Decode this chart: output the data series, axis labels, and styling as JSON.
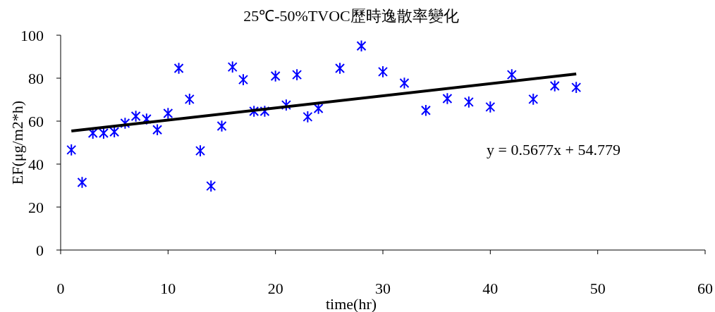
{
  "chart_data": {
    "type": "scatter",
    "title": "25℃-50%TVOC歷時逸散率變化",
    "xlabel": "time(hr)",
    "ylabel": "EF(μg/m2*h)",
    "xlim": [
      0,
      60
    ],
    "xticks": [
      0,
      10,
      20,
      30,
      40,
      50,
      60
    ],
    "ylim": [
      0,
      100
    ],
    "yticks": [
      0,
      20,
      40,
      60,
      80,
      100
    ],
    "grid": false,
    "marker": "cross",
    "annotations": [
      "y = 0.5677x + 54.779"
    ],
    "series": [
      {
        "color": "#0000ff",
        "x": [
          1,
          2,
          3,
          4,
          5,
          6,
          7,
          8,
          9,
          10,
          11,
          12,
          13,
          14,
          15,
          16,
          17,
          18,
          19,
          20,
          21,
          22,
          23,
          24,
          26,
          28,
          30,
          32,
          34,
          36,
          38,
          40,
          42,
          44,
          46,
          48
        ],
        "values": [
          46.6,
          31.5,
          54.4,
          54.4,
          55,
          59,
          62.3,
          61,
          56,
          63.6,
          84.6,
          70.2,
          46.2,
          29.8,
          57.7,
          85.2,
          79.3,
          64.6,
          64.6,
          81,
          67.5,
          81.6,
          62,
          65.9,
          84.6,
          95,
          83,
          77.7,
          65,
          70.5,
          68.9,
          66.6,
          81.6,
          70.2,
          76.4,
          75.7
        ]
      },
      {
        "type": "line",
        "color": "#000000",
        "marker": "none",
        "x": [
          1,
          48
        ],
        "values": [
          55.4,
          82.0
        ]
      }
    ]
  }
}
